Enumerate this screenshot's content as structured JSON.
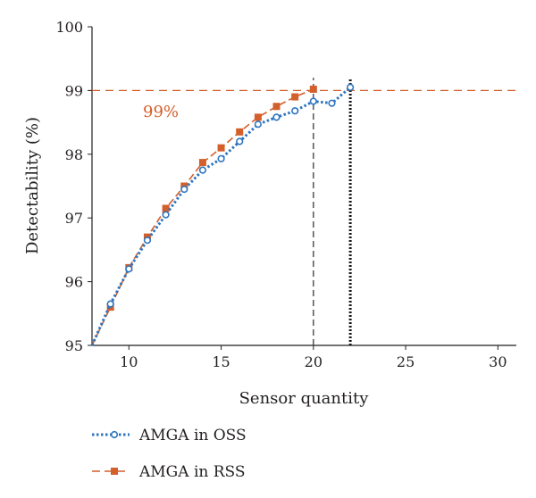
{
  "chart_data": {
    "type": "line",
    "title": "",
    "xlabel": "Sensor quantity",
    "ylabel": "Detectability (%)",
    "xlim": [
      8,
      31
    ],
    "ylim": [
      95,
      100
    ],
    "xticks": [
      10,
      15,
      20,
      25,
      30
    ],
    "yticks": [
      95,
      96,
      97,
      98,
      99,
      100
    ],
    "grid": false,
    "legend_position": "bottom-left",
    "series": [
      {
        "name": "AMGA in OSS",
        "color": "#2e75c0",
        "style": "dotted",
        "marker": "open-circle",
        "x": [
          8,
          9,
          10,
          11,
          12,
          13,
          14,
          15,
          16,
          17,
          18,
          19,
          20,
          21,
          22
        ],
        "y": [
          95.0,
          95.65,
          96.2,
          96.65,
          97.05,
          97.45,
          97.75,
          97.93,
          98.2,
          98.47,
          98.58,
          98.68,
          98.83,
          98.8,
          99.05
        ]
      },
      {
        "name": "AMGA in RSS",
        "color": "#d35f2b",
        "style": "dashed",
        "marker": "filled-square",
        "x": [
          8,
          9,
          10,
          11,
          12,
          13,
          14,
          15,
          16,
          17,
          18,
          19,
          20
        ],
        "y": [
          95.0,
          95.6,
          96.22,
          96.7,
          97.15,
          97.5,
          97.87,
          98.1,
          98.35,
          98.58,
          98.75,
          98.9,
          99.02
        ]
      }
    ],
    "reference_lines": [
      {
        "orientation": "horizontal",
        "value": 99,
        "color": "#d35f2b",
        "style": "dashed"
      },
      {
        "orientation": "vertical",
        "value": 20,
        "color": "#3a3a3a",
        "style": "dashed"
      },
      {
        "orientation": "vertical",
        "value": 22,
        "color": "#1a1a1a",
        "style": "dotted"
      }
    ],
    "annotations": [
      {
        "text": "99%",
        "x": 11,
        "y": 98.75,
        "color": "#d35f2b"
      }
    ]
  }
}
